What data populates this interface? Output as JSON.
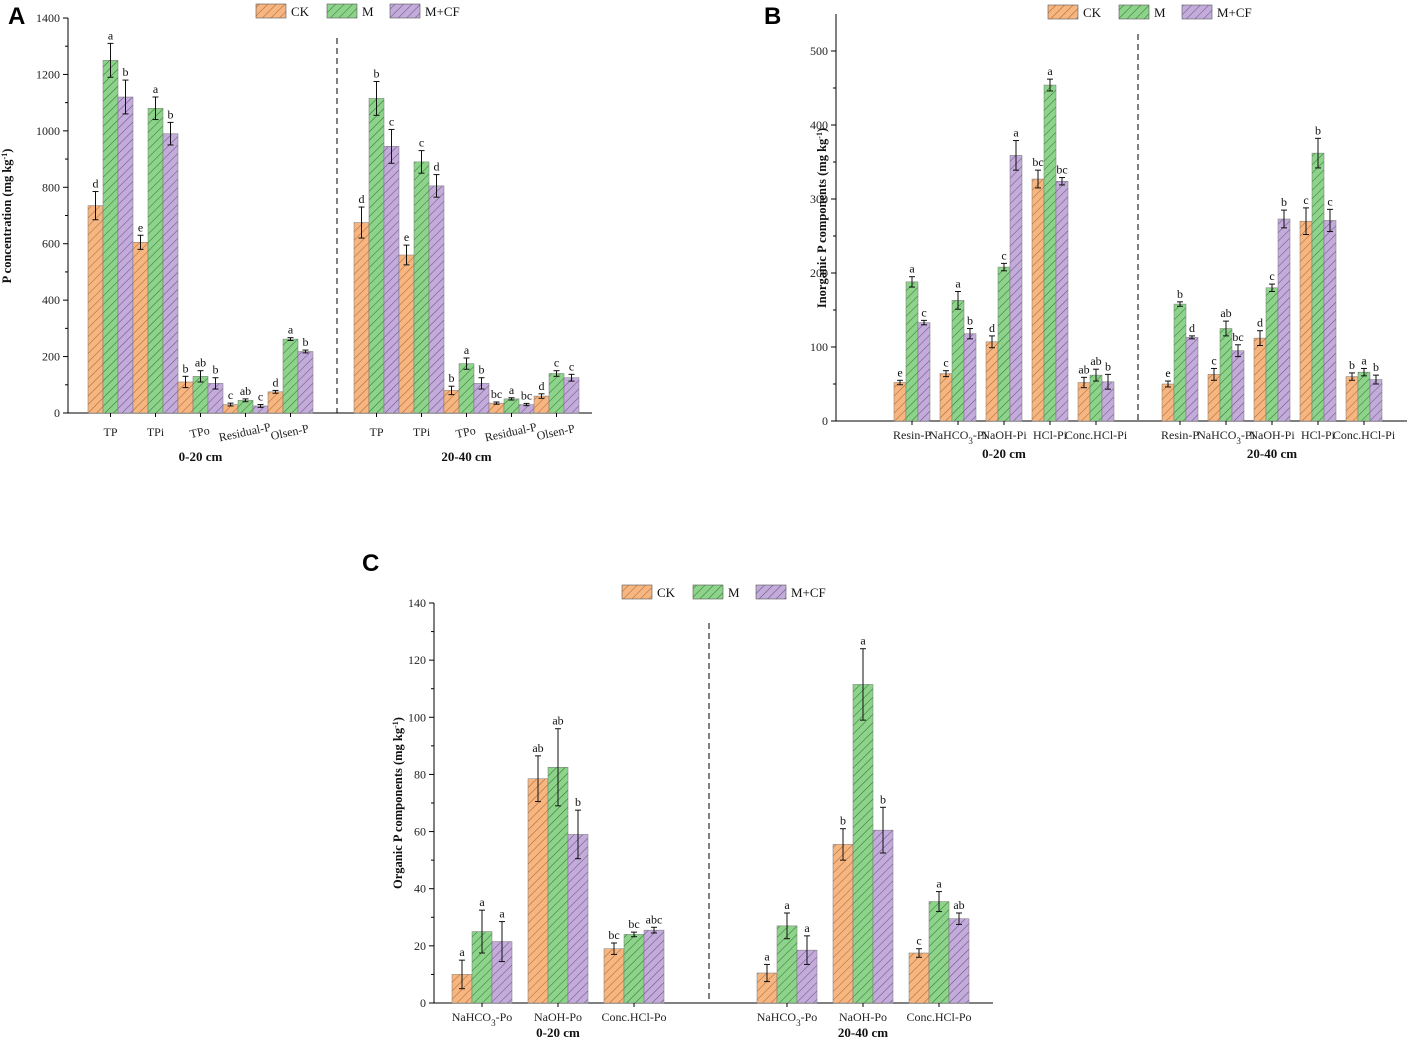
{
  "figure": {
    "colors": {
      "CK": "#f6b682",
      "M": "#8ed38b",
      "M+CF": "#c3acd9",
      "stroke": "#333333"
    },
    "legend_labels": [
      "CK",
      "M",
      "M+CF"
    ]
  },
  "chart_data": [
    {
      "panel": "A",
      "type": "bar",
      "ylabel": "P concentration (mg kg-1)",
      "ylim": [
        0,
        1400
      ],
      "yticks": [
        0,
        200,
        400,
        600,
        800,
        1000,
        1200,
        1400
      ],
      "series_names": [
        "CK",
        "M",
        "M+CF"
      ],
      "groups": [
        {
          "label": "0-20 cm",
          "categories": [
            "TP",
            "TPi",
            "TPo",
            "Residual-P",
            "Olsen-P"
          ],
          "values": [
            [
              735,
              1250,
              1120
            ],
            [
              605,
              1080,
              990
            ],
            [
              110,
              130,
              105
            ],
            [
              30,
              45,
              25
            ],
            [
              75,
              262,
              218
            ]
          ],
          "errors": [
            [
              50,
              60,
              60
            ],
            [
              25,
              40,
              40
            ],
            [
              20,
              20,
              20
            ],
            [
              5,
              5,
              5
            ],
            [
              5,
              5,
              5
            ]
          ],
          "letters": [
            [
              "d",
              "a",
              "b"
            ],
            [
              "e",
              "a",
              "b"
            ],
            [
              "b",
              "ab",
              "b"
            ],
            [
              "c",
              "ab",
              "c"
            ],
            [
              "d",
              "a",
              "b"
            ]
          ]
        },
        {
          "label": "20-40 cm",
          "categories": [
            "TP",
            "TPi",
            "TPo",
            "Residual-P",
            "Olsen-P"
          ],
          "values": [
            [
              675,
              1115,
              945
            ],
            [
              560,
              890,
              805
            ],
            [
              80,
              175,
              105
            ],
            [
              35,
              50,
              30
            ],
            [
              60,
              140,
              125
            ]
          ],
          "errors": [
            [
              55,
              60,
              60
            ],
            [
              35,
              40,
              40
            ],
            [
              15,
              20,
              20
            ],
            [
              4,
              4,
              4
            ],
            [
              8,
              10,
              12
            ]
          ],
          "letters": [
            [
              "d",
              "b",
              "c"
            ],
            [
              "e",
              "c",
              "d"
            ],
            [
              "b",
              "a",
              "b"
            ],
            [
              "bc",
              "a",
              "bc"
            ],
            [
              "d",
              "c",
              "c"
            ]
          ]
        }
      ]
    },
    {
      "panel": "B",
      "type": "bar",
      "ylabel": "Inorganic P components (mg kg-1)",
      "ylim": [
        0,
        550
      ],
      "yticks": [
        0,
        100,
        200,
        300,
        400,
        500
      ],
      "series_names": [
        "CK",
        "M",
        "M+CF"
      ],
      "groups": [
        {
          "label": "0-20 cm",
          "categories": [
            "Resin-P",
            "NaHCO3-Pi",
            "NaOH-Pi",
            "HCl-Pi",
            "Conc.HCl-Pi"
          ],
          "values": [
            [
              52,
              188,
              133
            ],
            [
              64,
              163,
              118
            ],
            [
              107,
              208,
              359
            ],
            [
              327,
              454,
              324
            ],
            [
              52,
              62,
              53
            ]
          ],
          "errors": [
            [
              3,
              7,
              3
            ],
            [
              4,
              12,
              7
            ],
            [
              8,
              5,
              20
            ],
            [
              12,
              8,
              5
            ],
            [
              7,
              8,
              10
            ]
          ],
          "letters": [
            [
              "e",
              "a",
              "c"
            ],
            [
              "c",
              "a",
              "b"
            ],
            [
              "d",
              "c",
              "a"
            ],
            [
              "bc",
              "a",
              "bc"
            ],
            [
              "ab",
              "ab",
              "b"
            ]
          ]
        },
        {
          "label": "20-40 cm",
          "categories": [
            "Resin-P",
            "NaHCO3-Pi",
            "NaOH-Pi",
            "HCl-Pi",
            "Conc.HCl-Pi"
          ],
          "values": [
            [
              50,
              158,
              113
            ],
            [
              63,
              125,
              95
            ],
            [
              112,
              180,
              273
            ],
            [
              270,
              362,
              271
            ],
            [
              60,
              66,
              56
            ]
          ],
          "errors": [
            [
              4,
              3,
              2
            ],
            [
              8,
              10,
              8
            ],
            [
              10,
              5,
              12
            ],
            [
              18,
              20,
              15
            ],
            [
              5,
              5,
              6
            ]
          ],
          "letters": [
            [
              "e",
              "b",
              "d"
            ],
            [
              "c",
              "ab",
              "bc"
            ],
            [
              "d",
              "c",
              "b"
            ],
            [
              "c",
              "b",
              "c"
            ],
            [
              "b",
              "a",
              "b"
            ]
          ]
        }
      ]
    },
    {
      "panel": "C",
      "type": "bar",
      "ylabel": "Organic P components (mg kg-1)",
      "ylim": [
        0,
        140
      ],
      "yticks": [
        0,
        20,
        40,
        60,
        80,
        100,
        120,
        140
      ],
      "series_names": [
        "CK",
        "M",
        "M+CF"
      ],
      "groups": [
        {
          "label": "0-20 cm",
          "categories": [
            "NaHCO3-Po",
            "NaOH-Po",
            "Conc.HCl-Po"
          ],
          "values": [
            [
              10,
              25,
              21.5
            ],
            [
              78.5,
              82.5,
              59
            ],
            [
              19,
              24,
              25.5
            ]
          ],
          "errors": [
            [
              5,
              7.5,
              7
            ],
            [
              8,
              13.5,
              8.5
            ],
            [
              2,
              0.8,
              1
            ]
          ],
          "letters": [
            [
              "a",
              "a",
              "a"
            ],
            [
              "ab",
              "ab",
              "b"
            ],
            [
              "bc",
              "bc",
              "abc"
            ]
          ]
        },
        {
          "label": "20-40 cm",
          "categories": [
            "NaHCO3-Po",
            "NaOH-Po",
            "Conc.HCl-Po"
          ],
          "values": [
            [
              10.5,
              27,
              18.5
            ],
            [
              55.5,
              111.5,
              60.5
            ],
            [
              17.5,
              35.5,
              29.5
            ]
          ],
          "errors": [
            [
              3,
              4.5,
              5
            ],
            [
              5.5,
              12.5,
              8
            ],
            [
              1.5,
              3.5,
              2
            ]
          ],
          "letters": [
            [
              "a",
              "a",
              "a"
            ],
            [
              "b",
              "a",
              "b"
            ],
            [
              "c",
              "a",
              "ab"
            ]
          ]
        }
      ]
    }
  ]
}
